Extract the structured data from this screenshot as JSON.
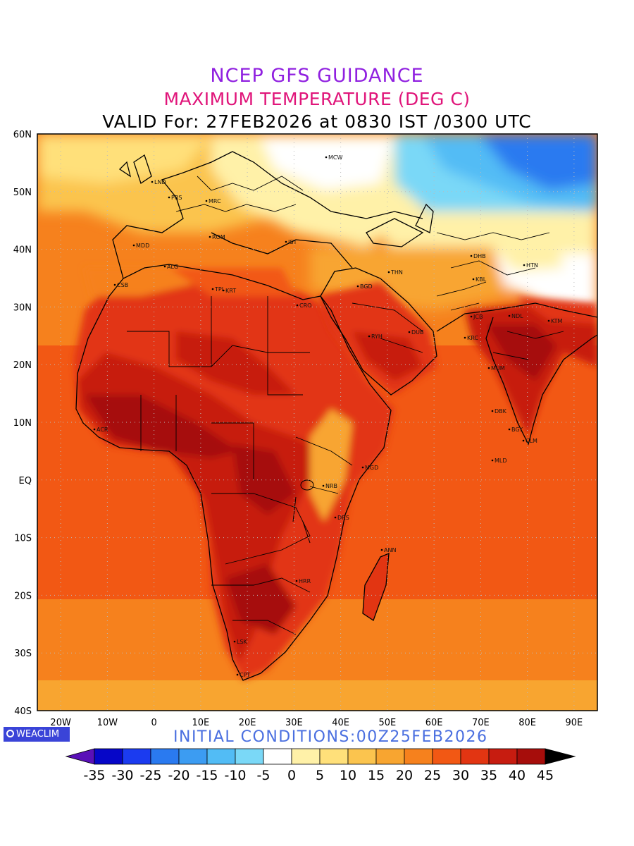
{
  "header": {
    "line1": "NCEP GFS GUIDANCE",
    "line1_color": "#9020e0",
    "line2": "MAXIMUM TEMPERATURE (DEG C)",
    "line2_color": "#e0157a",
    "line3": "VALID For: 27FEB2026 at 0830 IST /0300 UTC"
  },
  "map": {
    "lon_range": [
      -25,
      95
    ],
    "lat_range": [
      -40,
      60
    ],
    "lat_labels": [
      "60N",
      "50N",
      "40N",
      "30N",
      "20N",
      "10N",
      "EQ",
      "10S",
      "20S",
      "30S",
      "40S"
    ],
    "lon_labels": [
      "20W",
      "10W",
      "0",
      "10E",
      "20E",
      "30E",
      "40E",
      "50E",
      "60E",
      "70E",
      "80E",
      "90E"
    ],
    "cities": [
      "MCW",
      "LND",
      "PRS",
      "MRC",
      "MDD",
      "ROM",
      "IST",
      "ALG",
      "CSB",
      "TPL",
      "KRT",
      "CRO",
      "BGD",
      "THN",
      "DHB",
      "HTN",
      "KBL",
      "RYH",
      "DUB",
      "KRC",
      "JCB",
      "NDL",
      "KTM",
      "MUM",
      "DBK",
      "BGY",
      "CLM",
      "MLD",
      "MGD",
      "NRB",
      "DRS",
      "ANN",
      "HRR",
      "LSK",
      "CPT",
      "ACR"
    ]
  },
  "branding": {
    "label": "WEACLIM",
    "icon": "globe-icon"
  },
  "footer": {
    "initial_conditions": "INITIAL CONDITIONS:00Z25FEB2026"
  },
  "colorbar": {
    "ticks": [
      "-35",
      "-30",
      "-25",
      "-20",
      "-15",
      "-10",
      "-5",
      "0",
      "5",
      "10",
      "15",
      "20",
      "25",
      "30",
      "35",
      "40",
      "45"
    ],
    "colors": [
      "#0606c8",
      "#1b3bf0",
      "#2a7af0",
      "#3c9cf2",
      "#52bcf5",
      "#7ad8f7",
      "#ffffff",
      "#fff1a8",
      "#ffe07a",
      "#fbc44e",
      "#f8a530",
      "#f6811d",
      "#f25814",
      "#e23512",
      "#c71c10",
      "#a60d0b"
    ],
    "low_cap_color": "#5a10b8",
    "high_cap_color": "#000000"
  }
}
